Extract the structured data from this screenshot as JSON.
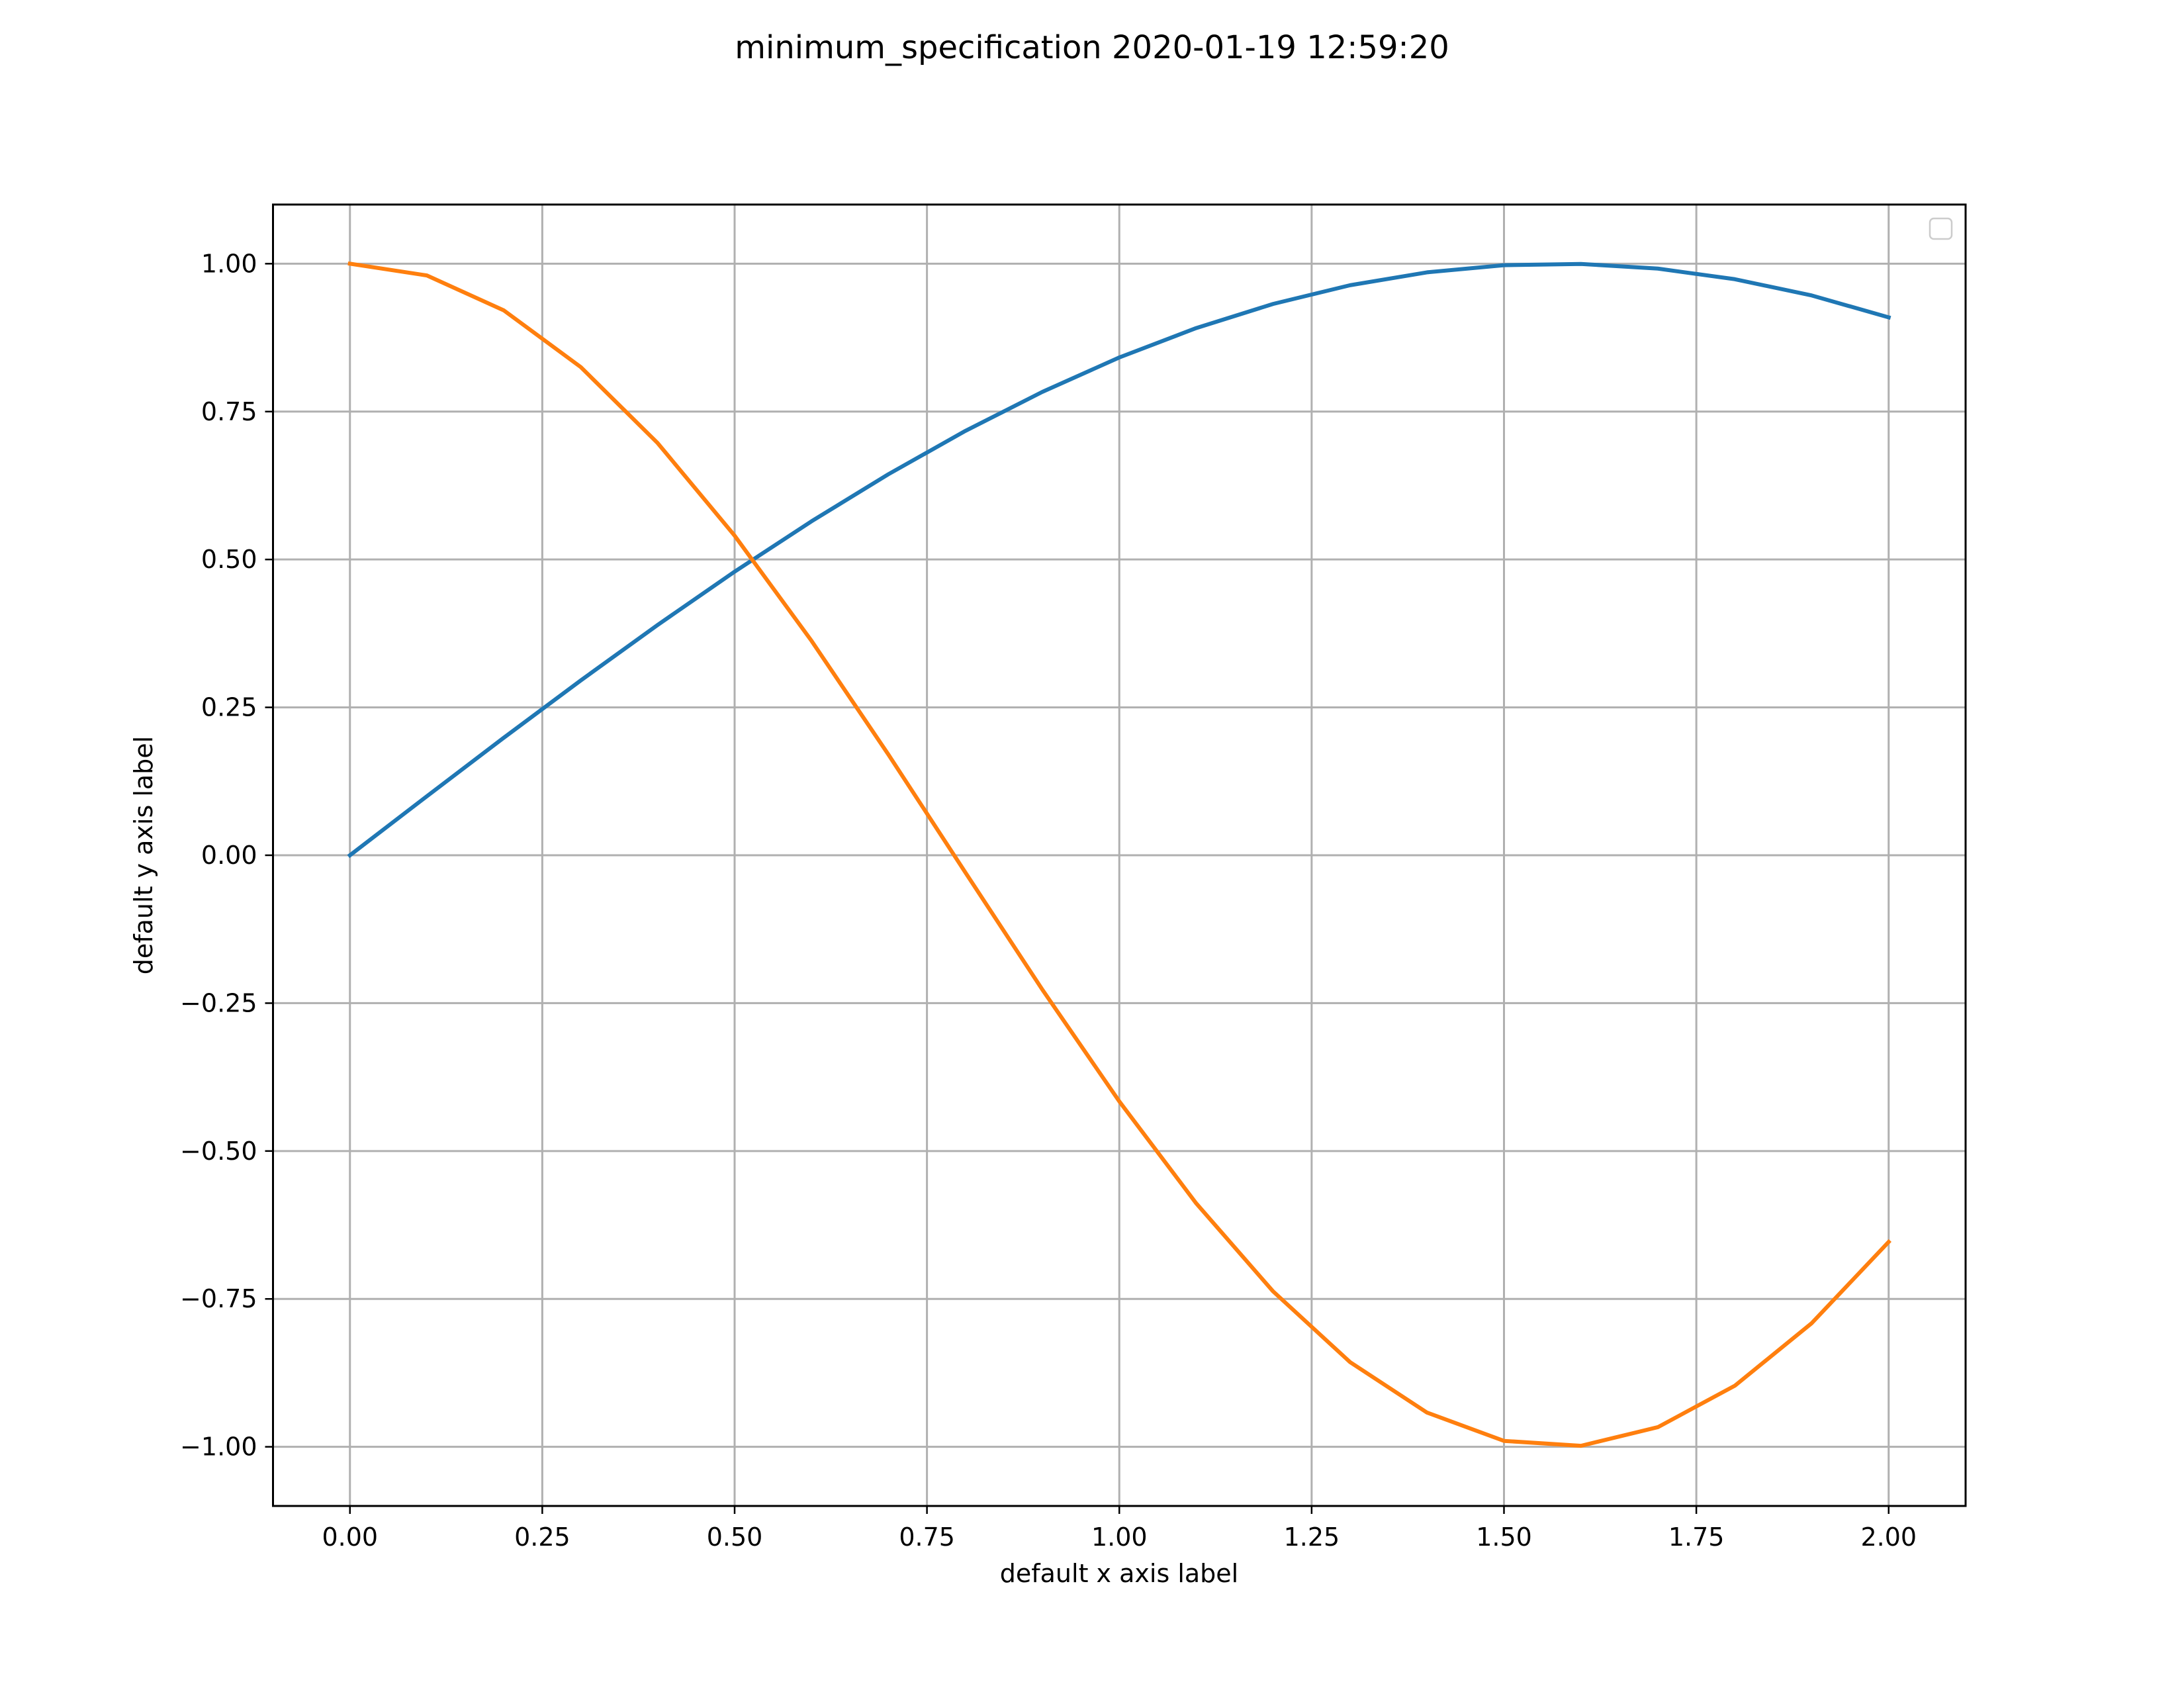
{
  "chart_data": {
    "type": "line",
    "title": "minimum_specification 2020-01-19 12:59:20",
    "xlabel": "default x axis label",
    "ylabel": "default y axis label",
    "xlim": [
      -0.1,
      2.1
    ],
    "ylim": [
      -1.1,
      1.1
    ],
    "xticks": [
      0.0,
      0.25,
      0.5,
      0.75,
      1.0,
      1.25,
      1.5,
      1.75,
      2.0
    ],
    "xtick_labels": [
      "0.00",
      "0.25",
      "0.50",
      "0.75",
      "1.00",
      "1.25",
      "1.50",
      "1.75",
      "2.00"
    ],
    "yticks": [
      -1.0,
      -0.75,
      -0.5,
      -0.25,
      0.0,
      0.25,
      0.5,
      0.75,
      1.0
    ],
    "ytick_labels": [
      "−1.00",
      "−0.75",
      "−0.50",
      "−0.25",
      "0.00",
      "0.25",
      "0.50",
      "0.75",
      "1.00"
    ],
    "grid": true,
    "legend": "top-right, empty",
    "x": [
      0.0,
      0.1,
      0.2,
      0.3,
      0.4,
      0.5,
      0.6,
      0.7,
      0.8,
      0.9,
      1.0,
      1.1,
      1.2,
      1.3,
      1.4,
      1.5,
      1.6,
      1.7,
      1.8,
      1.9,
      2.0
    ],
    "series": [
      {
        "color": "#1f77b4",
        "values": [
          0.0,
          0.0998,
          0.1987,
          0.2955,
          0.3894,
          0.4794,
          0.5646,
          0.6442,
          0.7174,
          0.7833,
          0.8415,
          0.8912,
          0.932,
          0.9636,
          0.9854,
          0.9975,
          0.9996,
          0.9917,
          0.9738,
          0.9463,
          0.9093
        ]
      },
      {
        "color": "#ff7f0e",
        "values": [
          1.0,
          0.9801,
          0.9211,
          0.8253,
          0.6967,
          0.5403,
          0.3624,
          0.17,
          -0.0292,
          -0.2272,
          -0.4161,
          -0.5885,
          -0.7374,
          -0.8569,
          -0.9422,
          -0.99,
          -0.9983,
          -0.9668,
          -0.8968,
          -0.791,
          -0.6536
        ]
      }
    ]
  }
}
